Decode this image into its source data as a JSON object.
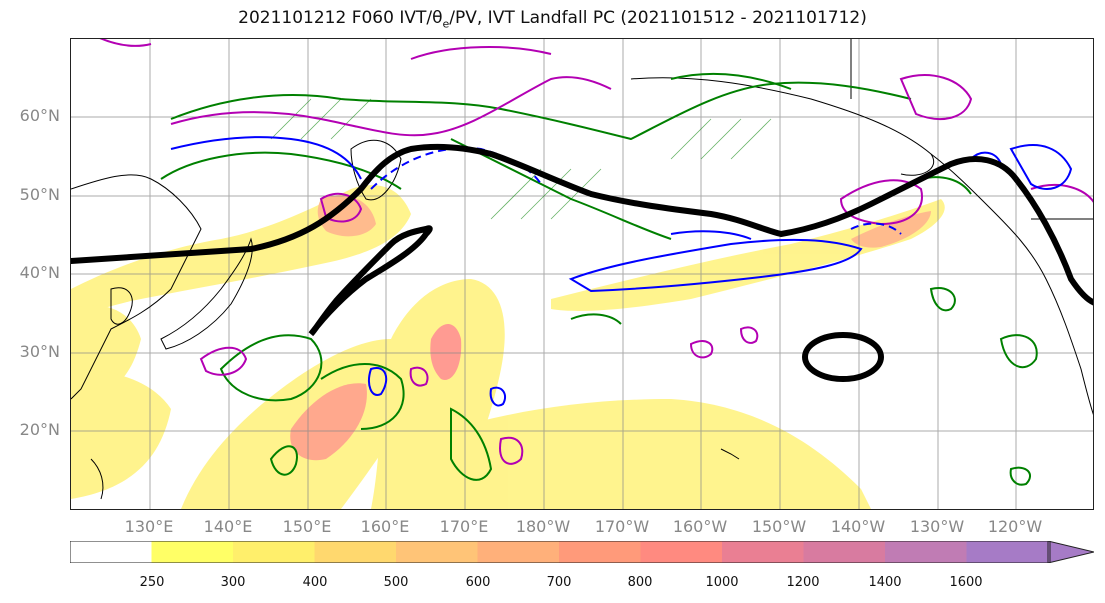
{
  "title": {
    "prefix": "2021101212 F060 IVT/",
    "theta": "θ",
    "theta_sub": "e",
    "suffix": "/PV, IVT Landfall PC (2021101512 - 2021101712)"
  },
  "lat_labels": [
    "60°N",
    "50°N",
    "40°N",
    "30°N",
    "20°N"
  ],
  "lon_labels": [
    "130°E",
    "140°E",
    "150°E",
    "160°E",
    "170°E",
    "180°W",
    "170°W",
    "160°W",
    "150°W",
    "140°W",
    "130°W",
    "120°W"
  ],
  "colorbar": {
    "ticks": [
      "250",
      "300",
      "400",
      "500",
      "600",
      "700",
      "800",
      "1000",
      "1200",
      "1400",
      "1600"
    ],
    "colors": [
      "#ffffff",
      "#ffff66",
      "#ffef6b",
      "#ffd86e",
      "#ffc477",
      "#ffb07a",
      "#ff9a7a",
      "#ff8a80",
      "#ea7f93",
      "#d87ba0",
      "#c07cb4",
      "#a67bc6"
    ]
  },
  "legend_colors": {
    "ridge_axis": "#000000",
    "ivt_contours": "#0000ff",
    "theta_e_contours": "#b300b3",
    "pv_contours": "#008000"
  }
}
